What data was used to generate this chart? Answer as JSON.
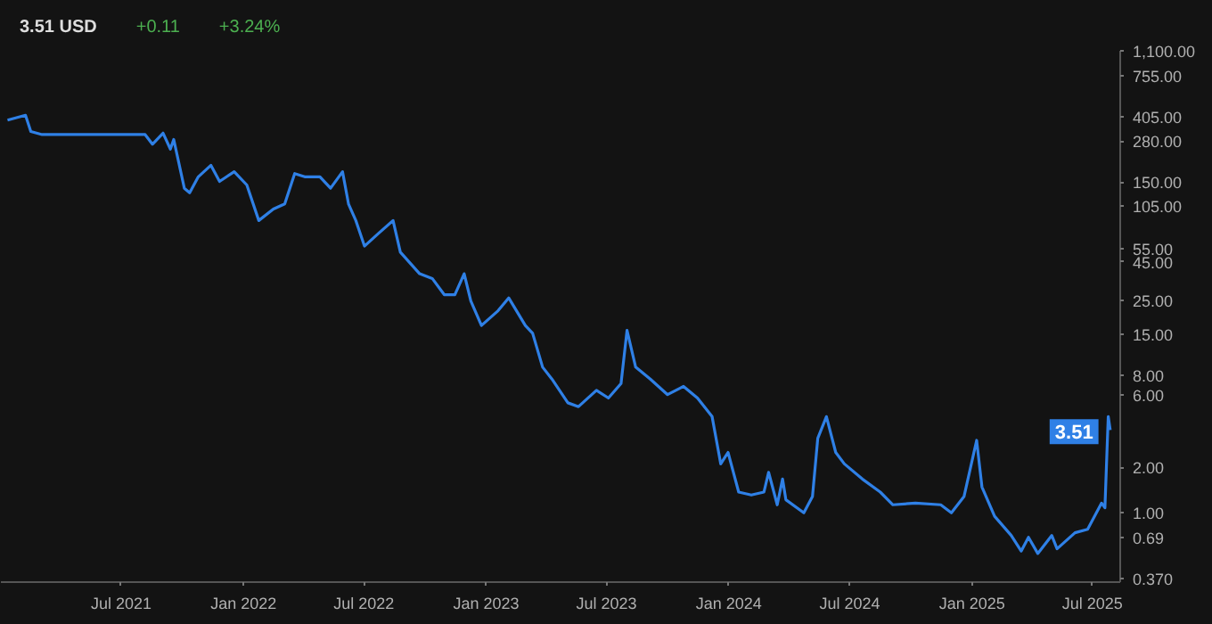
{
  "chart_data": {
    "type": "line",
    "log": "y",
    "grid": false,
    "line_style": "solid",
    "marker": "none",
    "annotations": [
      "3.51 USD",
      "+0.11",
      "+3.24%",
      {
        "text": "3.51",
        "x": "2025-07-28",
        "y": 3.51
      }
    ],
    "xlim": [
      "2021-01-01",
      "2025-08-12"
    ],
    "xticks": [
      {
        "value": "2021-07-01",
        "label": "Jul 2021"
      },
      {
        "value": "2022-01-01",
        "label": "Jan 2022"
      },
      {
        "value": "2022-07-01",
        "label": "Jul 2022"
      },
      {
        "value": "2023-01-01",
        "label": "Jan 2023"
      },
      {
        "value": "2023-07-01",
        "label": "Jul 2023"
      },
      {
        "value": "2024-01-01",
        "label": "Jan 2024"
      },
      {
        "value": "2024-07-01",
        "label": "Jul 2024"
      },
      {
        "value": "2025-01-01",
        "label": "Jan 2025"
      },
      {
        "value": "2025-07-01",
        "label": "Jul 2025"
      }
    ],
    "ylim": [
      0.35,
      1100
    ],
    "yticks": [
      {
        "value": 1100,
        "label": "1,100.00"
      },
      {
        "value": 755,
        "label": "755.00"
      },
      {
        "value": 405,
        "label": "405.00"
      },
      {
        "value": 280,
        "label": "280.00"
      },
      {
        "value": 150,
        "label": "150.00"
      },
      {
        "value": 105,
        "label": "105.00"
      },
      {
        "value": 55,
        "label": "55.00"
      },
      {
        "value": 45,
        "label": "45.00"
      },
      {
        "value": 25,
        "label": "25.00"
      },
      {
        "value": 15,
        "label": "15.00"
      },
      {
        "value": 8,
        "label": "8.00"
      },
      {
        "value": 6,
        "label": "6.00"
      },
      {
        "value": 2,
        "label": "2.00"
      },
      {
        "value": 1,
        "label": "1.00"
      },
      {
        "value": 0.69,
        "label": "0.69"
      },
      {
        "value": 0.37,
        "label": "0.370"
      }
    ],
    "x": [
      "2021-01-11",
      "2021-02-07",
      "2021-02-15",
      "2021-03-04",
      "2021-08-06",
      "2021-08-17",
      "2021-09-02",
      "2021-09-13",
      "2021-09-18",
      "2021-10-04",
      "2021-10-12",
      "2021-10-25",
      "2021-11-13",
      "2021-11-26",
      "2021-12-18",
      "2022-01-06",
      "2022-01-24",
      "2022-02-15",
      "2022-03-04",
      "2022-03-19",
      "2022-04-03",
      "2022-04-26",
      "2022-05-12",
      "2022-05-30",
      "2022-06-08",
      "2022-06-19",
      "2022-07-02",
      "2022-07-23",
      "2022-08-14",
      "2022-08-25",
      "2022-09-23",
      "2022-10-12",
      "2022-10-30",
      "2022-11-15",
      "2022-11-29",
      "2022-12-09",
      "2022-12-25",
      "2023-01-19",
      "2023-02-04",
      "2023-03-01",
      "2023-03-12",
      "2023-03-27",
      "2023-04-10",
      "2023-05-04",
      "2023-05-20",
      "2023-06-16",
      "2023-07-04",
      "2023-07-23",
      "2023-08-01",
      "2023-08-14",
      "2023-09-05",
      "2023-10-01",
      "2023-10-25",
      "2023-11-15",
      "2023-12-07",
      "2023-12-20",
      "2023-12-31",
      "2024-01-16",
      "2024-02-04",
      "2024-02-23",
      "2024-03-01",
      "2024-03-14",
      "2024-03-22",
      "2024-03-27",
      "2024-04-23",
      "2024-05-06",
      "2024-05-14",
      "2024-05-27",
      "2024-06-10",
      "2024-06-23",
      "2024-07-20",
      "2024-08-16",
      "2024-09-04",
      "2024-10-08",
      "2024-11-15",
      "2024-12-01",
      "2024-12-20",
      "2025-01-08",
      "2025-01-16",
      "2025-02-04",
      "2025-03-01",
      "2025-03-16",
      "2025-03-27",
      "2025-04-10",
      "2025-05-01",
      "2025-05-09",
      "2025-06-05",
      "2025-06-24",
      "2025-07-15",
      "2025-07-20",
      "2025-07-25",
      "2025-07-28"
    ],
    "series": [
      {
        "color": "#2f80e6",
        "values": [
          385,
          414,
          324,
          309,
          309,
          267,
          316,
          248,
          287,
          137,
          128,
          163,
          194,
          152,
          176,
          144,
          84,
          100,
          108,
          171,
          163,
          163,
          137,
          176,
          108,
          84,
          57,
          69,
          84,
          52,
          37.5,
          34.9,
          27.3,
          27.3,
          37.5,
          24.8,
          17.1,
          21.4,
          26,
          17.1,
          15.2,
          9.1,
          7.6,
          5.3,
          5,
          6.4,
          5.7,
          7.1,
          15.9,
          9.1,
          7.6,
          6,
          6.8,
          5.7,
          4.3,
          2.1,
          2.5,
          1.37,
          1.31,
          1.37,
          1.85,
          1.13,
          1.67,
          1.22,
          1,
          1.28,
          3.1,
          4.3,
          2.5,
          2.1,
          1.67,
          1.37,
          1.13,
          1.16,
          1.13,
          1,
          1.28,
          3,
          1.48,
          0.95,
          0.71,
          0.56,
          0.69,
          0.54,
          0.71,
          0.58,
          0.74,
          0.78,
          1.16,
          1.08,
          4.3,
          3.51
        ]
      }
    ]
  }
}
